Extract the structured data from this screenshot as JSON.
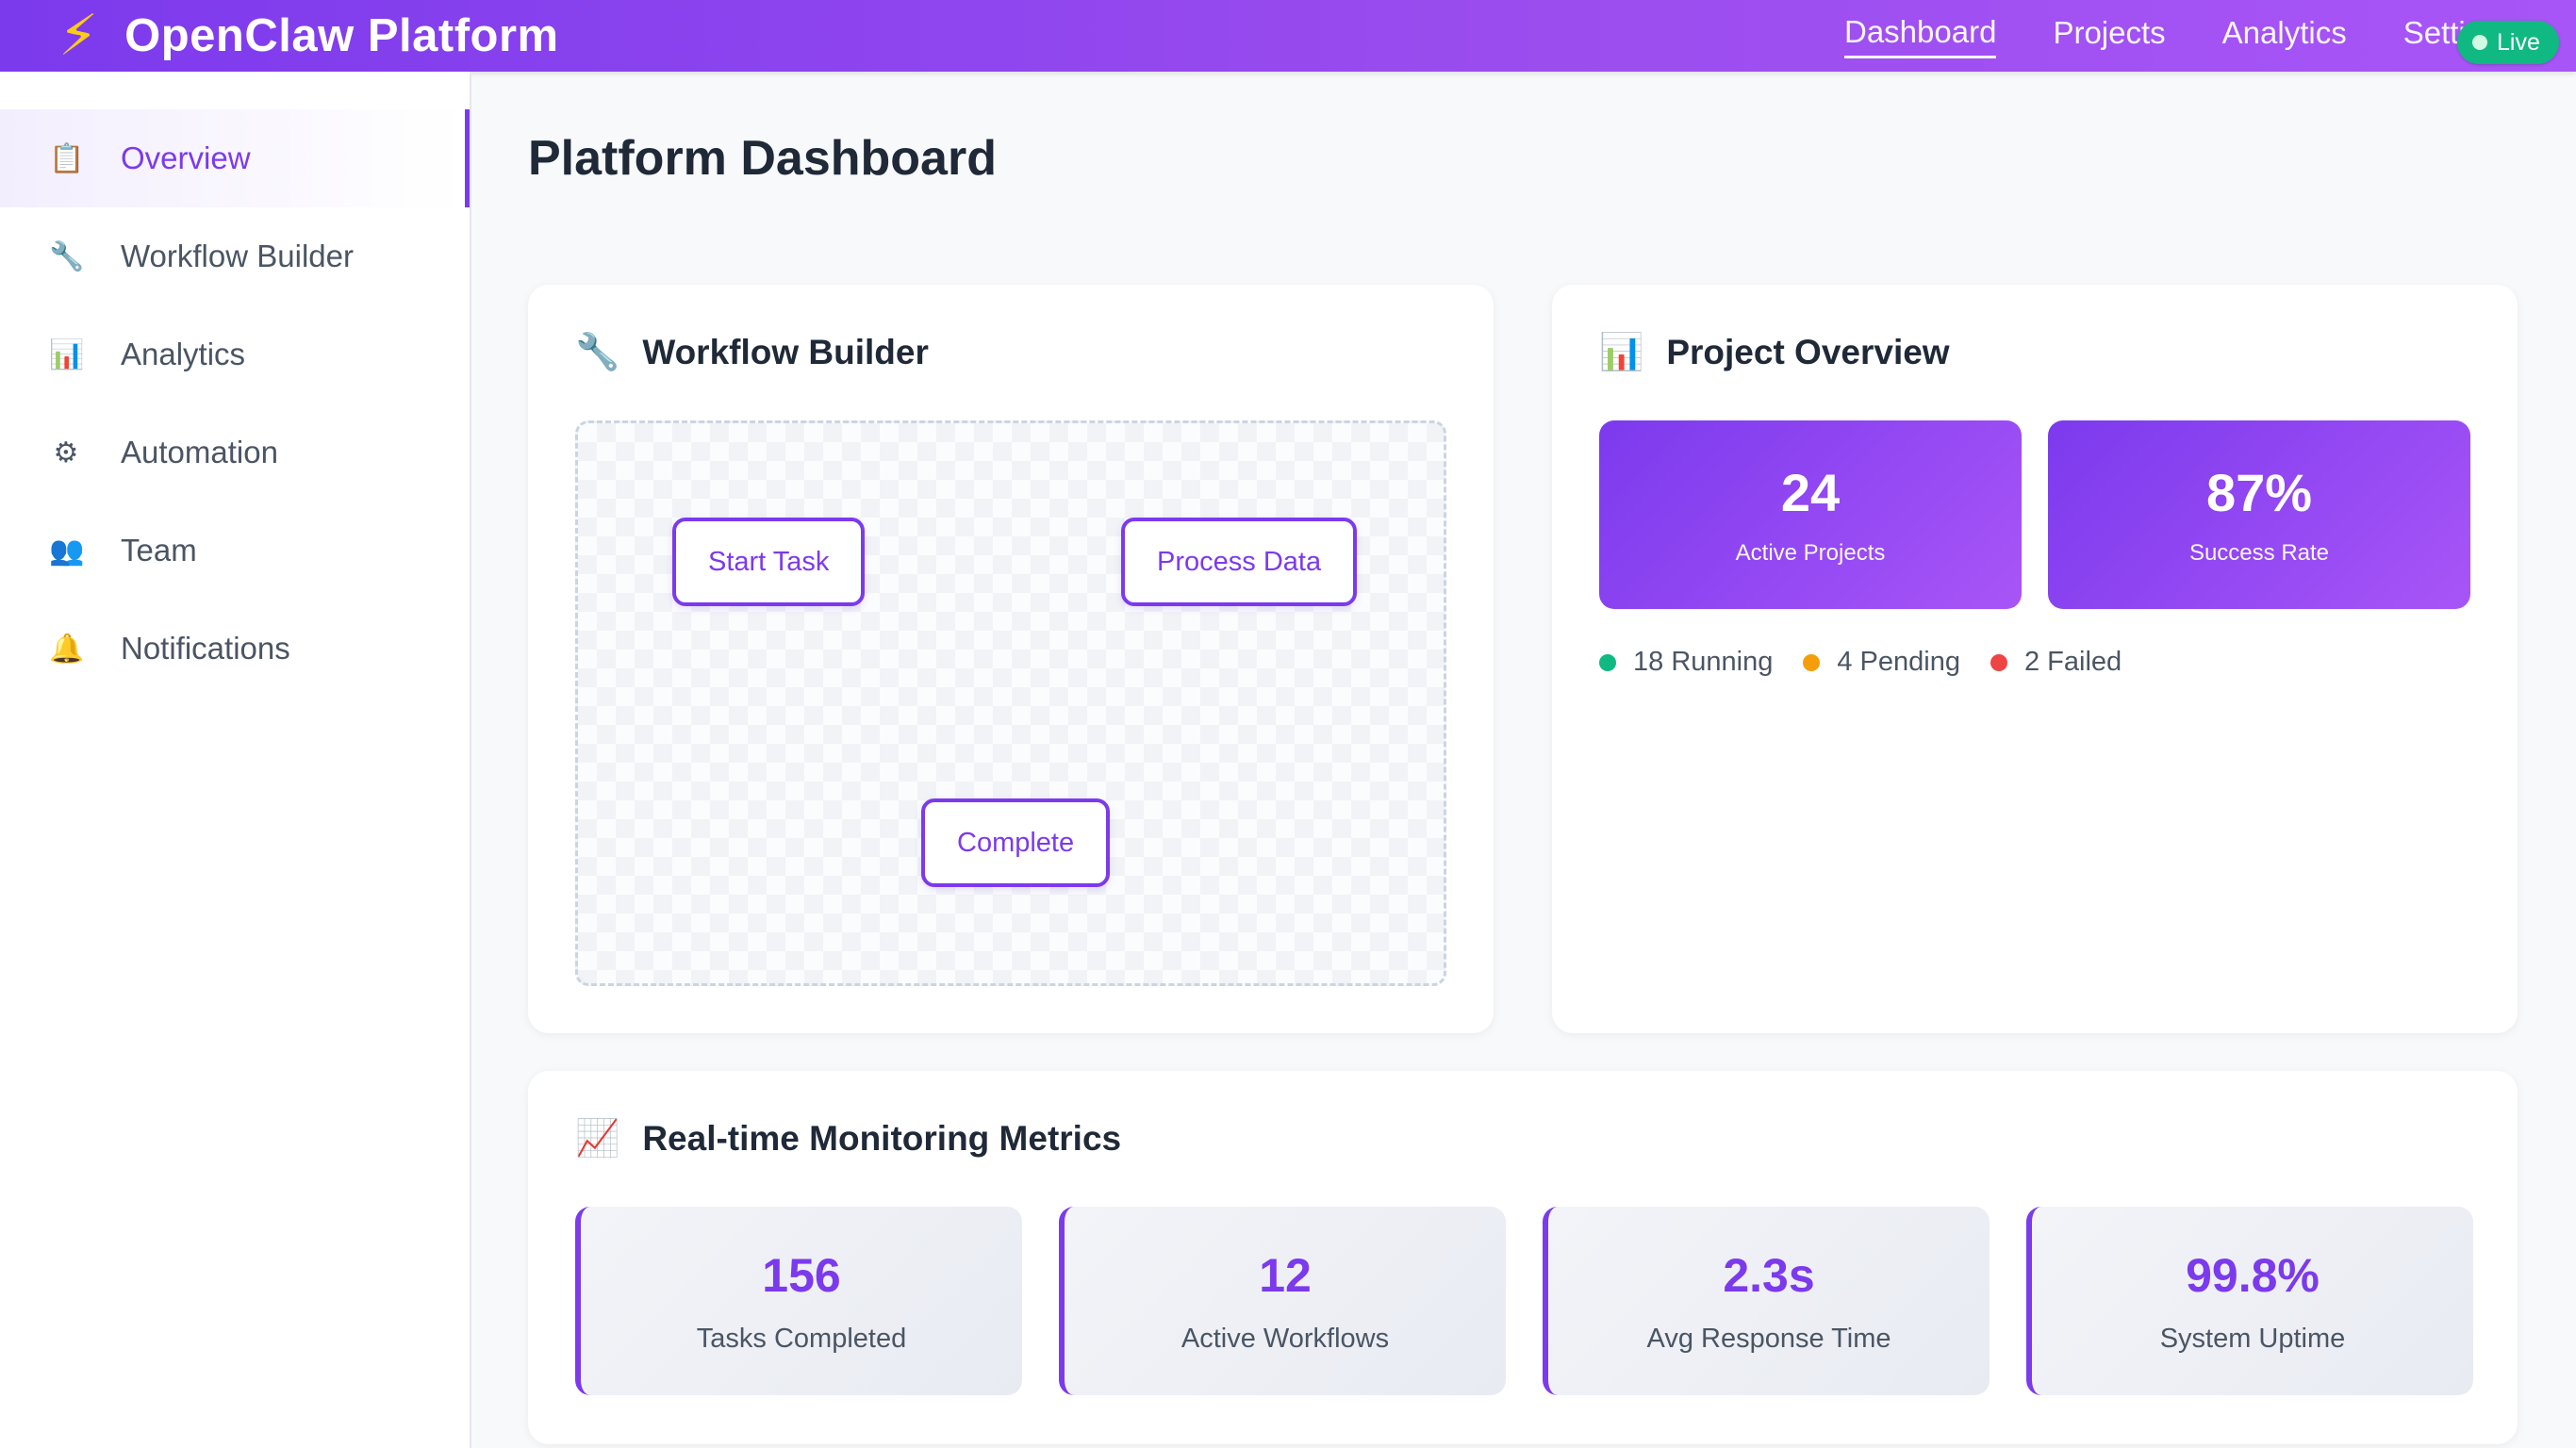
{
  "header": {
    "logo_icon": "lightning-bolt-icon",
    "brand_glyph": "⚡",
    "title": "OpenClaw Platform",
    "nav": [
      {
        "label": "Dashboard",
        "active": true
      },
      {
        "label": "Projects",
        "active": false
      },
      {
        "label": "Analytics",
        "active": false
      },
      {
        "label": "Setti",
        "active": false
      }
    ],
    "status_badge": "Live",
    "accent_color": "#7c3aed"
  },
  "sidebar": {
    "items": [
      {
        "icon": "clipboard-icon",
        "glyph": "📋",
        "label": "Overview",
        "active": true
      },
      {
        "icon": "wrench-icon",
        "glyph": "🔧",
        "label": "Workflow Builder",
        "active": false
      },
      {
        "icon": "bar-chart-icon",
        "glyph": "📊",
        "label": "Analytics",
        "active": false
      },
      {
        "icon": "gear-icon",
        "glyph": "⚙",
        "label": "Automation",
        "active": false
      },
      {
        "icon": "team-icon",
        "glyph": "👥",
        "label": "Team",
        "active": false
      },
      {
        "icon": "bell-icon",
        "glyph": "🔔",
        "label": "Notifications",
        "active": false
      }
    ]
  },
  "main": {
    "page_title": "Platform Dashboard",
    "workflow": {
      "icon": "wrench-icon",
      "glyph": "🔧",
      "title": "Workflow Builder",
      "nodes": [
        "Start Task",
        "Process Data",
        "Complete"
      ]
    },
    "project_overview": {
      "icon": "bar-chart-icon",
      "glyph": "📊",
      "title": "Project Overview",
      "stats": [
        {
          "value": "24",
          "label": "Active Projects"
        },
        {
          "value": "87%",
          "label": "Success Rate"
        }
      ],
      "status_legend": [
        {
          "label": "18 Running",
          "color": "#10b981"
        },
        {
          "label": "4 Pending",
          "color": "#f59e0b"
        },
        {
          "label": "2 Failed",
          "color": "#ef4444"
        }
      ]
    },
    "realtime": {
      "icon": "trend-chart-icon",
      "glyph": "📈",
      "title": "Real-time Monitoring Metrics",
      "metrics": [
        {
          "value": "156",
          "label": "Tasks Completed"
        },
        {
          "value": "12",
          "label": "Active Workflows"
        },
        {
          "value": "2.3s",
          "label": "Avg Response Time"
        },
        {
          "value": "99.8%",
          "label": "System Uptime"
        }
      ]
    }
  }
}
